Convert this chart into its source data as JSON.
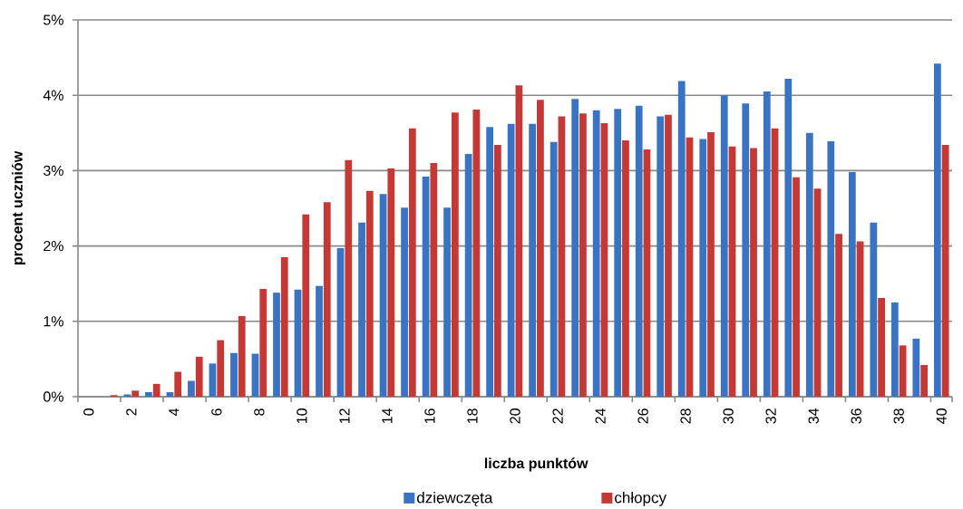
{
  "chart_data": {
    "type": "bar",
    "xlabel": "liczba punktów",
    "ylabel": "procent uczniów",
    "categories": [
      "0",
      null,
      "2",
      null,
      "4",
      null,
      "6",
      null,
      "8",
      null,
      "10",
      null,
      "12",
      null,
      "14",
      null,
      "16",
      null,
      "18",
      null,
      "20",
      null,
      "22",
      null,
      "24",
      null,
      "26",
      null,
      "28",
      null,
      "30",
      null,
      "32",
      null,
      "34",
      null,
      "36",
      null,
      "38",
      null,
      "40"
    ],
    "series": [
      {
        "name": "dziewczęta",
        "color": "#3873c4",
        "values": [
          0,
          0,
          0.03,
          0.06,
          0.06,
          0.21,
          0.44,
          0.58,
          0.57,
          1.38,
          1.42,
          1.47,
          1.97,
          2.31,
          2.69,
          2.51,
          2.92,
          2.51,
          3.22,
          3.58,
          3.62,
          3.62,
          3.38,
          3.95,
          3.8,
          3.82,
          3.86,
          3.72,
          4.19,
          3.42,
          4.0,
          3.89,
          4.05,
          4.22,
          3.5,
          3.39,
          2.98,
          2.31,
          1.25,
          0.77,
          4.42
        ]
      },
      {
        "name": "chłopcy",
        "color": "#c53834",
        "values": [
          0,
          0.02,
          0.08,
          0.17,
          0.33,
          0.53,
          0.75,
          1.07,
          1.43,
          1.85,
          2.42,
          2.58,
          3.14,
          2.73,
          3.03,
          3.56,
          3.1,
          3.77,
          3.81,
          3.34,
          4.13,
          3.94,
          3.72,
          3.76,
          3.63,
          3.4,
          3.28,
          3.74,
          3.44,
          3.51,
          3.32,
          3.3,
          3.56,
          2.91,
          2.76,
          2.16,
          2.06,
          1.31,
          0.68,
          0.42,
          3.34
        ]
      }
    ],
    "ylim": [
      0,
      5
    ],
    "yticks": [
      {
        "value": 0,
        "label": "0%"
      },
      {
        "value": 1,
        "label": "1%"
      },
      {
        "value": 2,
        "label": "2%"
      },
      {
        "value": 3,
        "label": "3%"
      },
      {
        "value": 4,
        "label": "4%"
      },
      {
        "value": 5,
        "label": "5%"
      }
    ],
    "grid": "y",
    "legend": "bottom"
  }
}
